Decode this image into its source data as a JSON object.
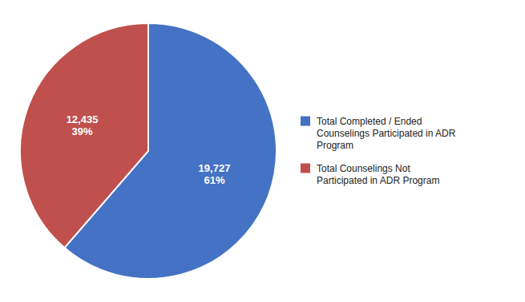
{
  "chart_data": {
    "type": "pie",
    "categories": [
      "Total Completed / Ended\nCounselings Participated in ADR\nProgram",
      "Total Counselings Not\nParticipated in ADR Program"
    ],
    "values": [
      19727,
      12435
    ],
    "value_labels": [
      "19,727\n61%",
      "12,435\n39%"
    ],
    "data_labels": true,
    "colors": [
      "#4472C4",
      "#C0504D"
    ],
    "legend": "right"
  }
}
